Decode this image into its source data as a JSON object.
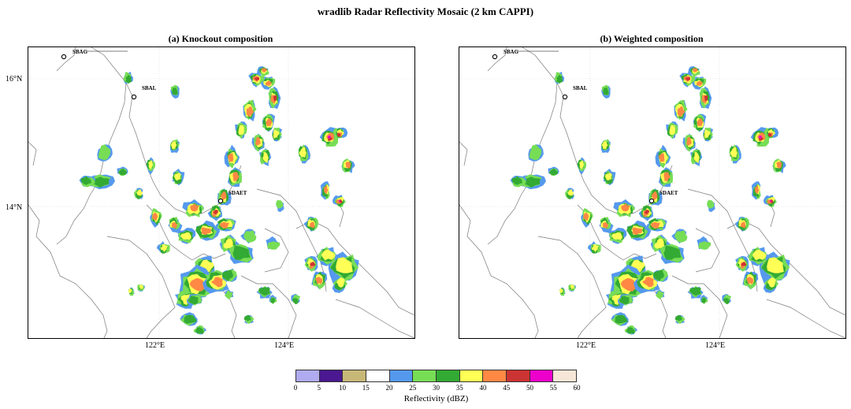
{
  "figure": {
    "title": "wradlib Radar Reflectivity Mosaic (2 km CAPPI)"
  },
  "panels": [
    {
      "title": "(a) Knockout composition",
      "variant": "knockout"
    },
    {
      "title": "(b) Weighted composition",
      "variant": "weighted"
    }
  ],
  "axes": {
    "lon_ticks": [
      "122°E",
      "124°E"
    ],
    "lat_ticks": [
      "16°N",
      "14°N"
    ]
  },
  "stations": [
    {
      "name": "SBAG"
    },
    {
      "name": "SBAL"
    },
    {
      "name": "SDAET"
    }
  ],
  "colorbar": {
    "label": "Reflectivity (dBZ)",
    "ticks": [
      "0",
      "5",
      "10",
      "15",
      "20",
      "25",
      "30",
      "35",
      "40",
      "45",
      "50",
      "55",
      "60"
    ],
    "colors": [
      "#b0aaf0",
      "#4a1890",
      "#c8b878",
      "#ffffff",
      "#5599ee",
      "#77dd55",
      "#33aa33",
      "#ffff55",
      "#ff8844",
      "#cc3333",
      "#ee00cc",
      "#f6e6d8"
    ]
  },
  "colors": {
    "coastline": "#7a7a7a",
    "station_marker": "#000000"
  }
}
